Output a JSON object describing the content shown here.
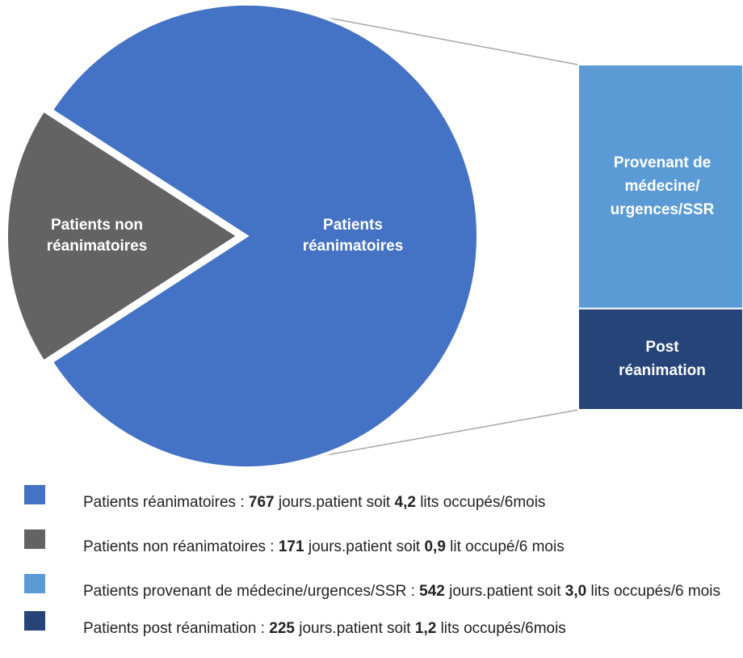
{
  "chart_data": {
    "type": "pie-of-bar",
    "pie": {
      "labels": [
        [
          "Patients",
          "réanimatoires"
        ],
        [
          "Patients non",
          "réanimatoires"
        ]
      ],
      "values": [
        767,
        171
      ],
      "colors": [
        "#4472c4",
        "#636363"
      ]
    },
    "bar": {
      "labels": [
        [
          "Provenant de",
          "médecine/",
          "urgences/SSR"
        ],
        [
          "Post",
          "réanimation"
        ]
      ],
      "values": [
        542,
        225
      ],
      "colors": [
        "#5b9bd5",
        "#264478"
      ]
    },
    "legend": [
      {
        "prefix": "Patients réanimatoires : ",
        "days": 767,
        "middle": " jours.patient soit ",
        "beds": "4,2",
        "suffix": " lits occupés/6mois",
        "color": "#4472c4"
      },
      {
        "prefix": "Patients non réanimatoires : ",
        "days": 171,
        "middle": " jours.patient soit ",
        "beds": "0,9",
        "suffix": " lit occupé/6 mois",
        "color": "#636363"
      },
      {
        "prefix": "Patients provenant de médecine/urgences/SSR : ",
        "days": 542,
        "middle": " jours.patient soit ",
        "beds": "3,0",
        "suffix": " lits occupés/6 mois",
        "color": "#5b9bd5"
      },
      {
        "prefix": "Patients post réanimation : ",
        "days": 225,
        "middle": " jours.patient soit ",
        "beds": "1,2",
        "suffix": " lits occupés/6mois",
        "color": "#264478"
      }
    ]
  }
}
